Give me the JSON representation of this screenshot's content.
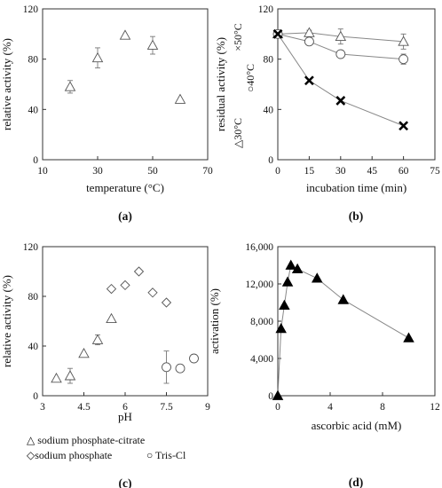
{
  "chart_data": [
    {
      "panel": "a",
      "type": "scatter",
      "panel_label": "(a)",
      "xlabel": "temperature (°C)",
      "ylabel": "relative activity (%)",
      "xlim": [
        10,
        70
      ],
      "ylim": [
        0,
        120
      ],
      "xticks": [
        10,
        30,
        50,
        70
      ],
      "yticks": [
        0,
        40,
        80,
        120
      ],
      "series": [
        {
          "marker": "triangle",
          "filled": false,
          "x": [
            20,
            30,
            40,
            50,
            60
          ],
          "y": [
            58,
            81,
            99,
            91,
            48
          ],
          "err": [
            5,
            8,
            0,
            7,
            0
          ]
        }
      ]
    },
    {
      "panel": "b",
      "type": "line",
      "panel_label": "(b)",
      "xlabel": "incubation time (min)",
      "ylabel": "residual activity (%)",
      "xlim": [
        0,
        75
      ],
      "ylim": [
        0,
        120
      ],
      "xticks": [
        0,
        15,
        30,
        45,
        60,
        75
      ],
      "yticks": [
        0,
        40,
        80,
        120
      ],
      "legend_placement": "inside-left, rotated along y-axis",
      "series": [
        {
          "name": "30°C",
          "legend_symbol": "△",
          "marker": "triangle",
          "filled": false,
          "x": [
            0,
            15,
            30,
            60
          ],
          "y": [
            100,
            101,
            98,
            94
          ],
          "err": [
            0,
            2,
            6,
            6
          ]
        },
        {
          "name": "40°C",
          "legend_symbol": "○",
          "marker": "circle",
          "filled": false,
          "x": [
            0,
            15,
            30,
            60
          ],
          "y": [
            100,
            94,
            84,
            80
          ],
          "err": [
            0,
            2,
            2,
            4
          ]
        },
        {
          "name": "50°C",
          "legend_symbol": "×",
          "marker": "cross",
          "filled": true,
          "x": [
            0,
            15,
            30,
            60
          ],
          "y": [
            100,
            63,
            47,
            27
          ],
          "err": [
            0,
            0,
            0,
            0
          ]
        }
      ]
    },
    {
      "panel": "c",
      "type": "scatter",
      "panel_label": "(c)",
      "xlabel": "pH",
      "ylabel": "relative activity (%)",
      "xlim": [
        3,
        9
      ],
      "ylim": [
        0,
        120
      ],
      "xticks": [
        3,
        4.5,
        6,
        7.5,
        9
      ],
      "yticks": [
        0,
        40,
        80,
        120
      ],
      "legend_placement": "below",
      "series": [
        {
          "name": "sodium phosphate-citrate",
          "legend_symbol": "△",
          "marker": "triangle",
          "filled": false,
          "x": [
            3.5,
            4.0,
            4.5,
            5.0,
            5.5
          ],
          "y": [
            14,
            16,
            34,
            45,
            62
          ],
          "err": [
            0,
            6,
            0,
            4,
            0
          ]
        },
        {
          "name": "sodium phosphate",
          "legend_symbol": "◇",
          "marker": "diamond",
          "filled": false,
          "x": [
            5.5,
            6.0,
            6.5,
            7.0,
            7.5
          ],
          "y": [
            86,
            89,
            100,
            83,
            75
          ],
          "err": [
            0,
            0,
            0,
            0,
            0
          ]
        },
        {
          "name": "Tris-Cl",
          "legend_symbol": "○",
          "marker": "circle",
          "filled": false,
          "x": [
            7.5,
            8.0,
            8.5
          ],
          "y": [
            23,
            22,
            30
          ],
          "err": [
            13,
            0,
            0
          ]
        }
      ]
    },
    {
      "panel": "d",
      "type": "line",
      "panel_label": "(d)",
      "xlabel": "ascorbic acid (mM)",
      "ylabel": "activation (%)",
      "xlim": [
        0,
        12
      ],
      "ylim": [
        0,
        16000
      ],
      "xticks": [
        0,
        4,
        8,
        12
      ],
      "yticks": [
        0,
        4000,
        8000,
        12000,
        16000
      ],
      "ytick_labels": [
        "0",
        "4,000",
        "8,000",
        "12,000",
        "16,000"
      ],
      "series": [
        {
          "marker": "triangle",
          "filled": true,
          "x": [
            0,
            0.25,
            0.5,
            0.75,
            1.0,
            1.5,
            3,
            5,
            10
          ],
          "y": [
            0,
            7200,
            9700,
            12200,
            14000,
            13600,
            12600,
            10300,
            6200
          ],
          "err": [
            0,
            0,
            0,
            0,
            0,
            0,
            0,
            0,
            0
          ]
        }
      ]
    }
  ]
}
